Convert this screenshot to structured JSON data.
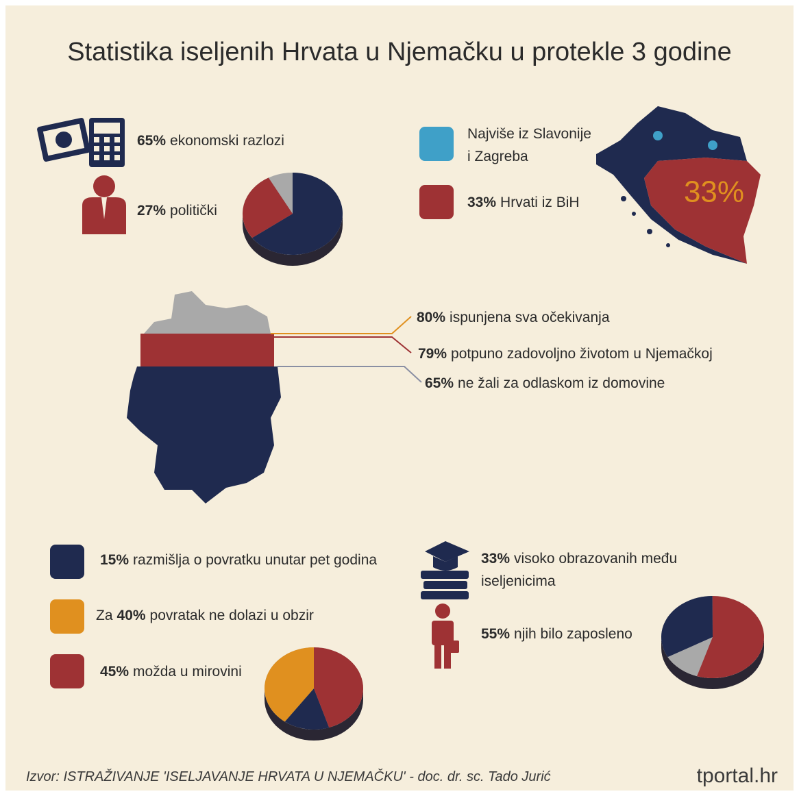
{
  "title": "Statistika iseljenih Hrvata u Njemačku u protekle 3 godine",
  "reasons": {
    "items": [
      {
        "value": 65,
        "label": "65%",
        "text": "ekonomski razlozi",
        "color": "#1f2a4f"
      },
      {
        "value": 27,
        "label": "27%",
        "text": "politički",
        "color": "#9e3234"
      }
    ]
  },
  "origin": {
    "regions": {
      "lines": [
        "Najviše iz Slavonije",
        "i Zagreba"
      ],
      "color": "#3fa0c8"
    },
    "bih": {
      "label": "33%",
      "text": "Hrvati iz BiH",
      "color": "#9e3234"
    }
  },
  "germany": {
    "items": [
      {
        "label": "80%",
        "text": "ispunjena sva očekivanja"
      },
      {
        "label": "79%",
        "text": "potpuno zadovoljno životom u Njemačkoj"
      },
      {
        "label": "65%",
        "text": "ne žali za odlaskom iz domovine"
      }
    ]
  },
  "return": {
    "items": [
      {
        "value": 15,
        "prefix": "",
        "label": "15%",
        "text": "razmišlja o povratku unutar pet godina",
        "color": "#1f2a4f"
      },
      {
        "value": 40,
        "prefix": "Za",
        "label": "40%",
        "text": "povratak ne dolazi u obzir",
        "color": "#e0901f"
      },
      {
        "value": 45,
        "prefix": "",
        "label": "45%",
        "text": "možda u mirovini",
        "color": "#9e3234"
      }
    ]
  },
  "education": {
    "items": [
      {
        "value": 33,
        "label": "33%",
        "lines": [
          "visoko obrazovanih među",
          "iseljenicima"
        ],
        "color": "#1f2a4f"
      },
      {
        "value": 55,
        "label": "55%",
        "lines": [
          "njih bilo zaposleno"
        ],
        "color": "#9e3234"
      }
    ]
  },
  "footer": {
    "source": "Izvor: ISTRAŽIVANJE 'ISELJAVANJE HRVATA U NJEMAČKU' - doc. dr. sc. Tado Jurić",
    "logo": "tportal.hr"
  }
}
